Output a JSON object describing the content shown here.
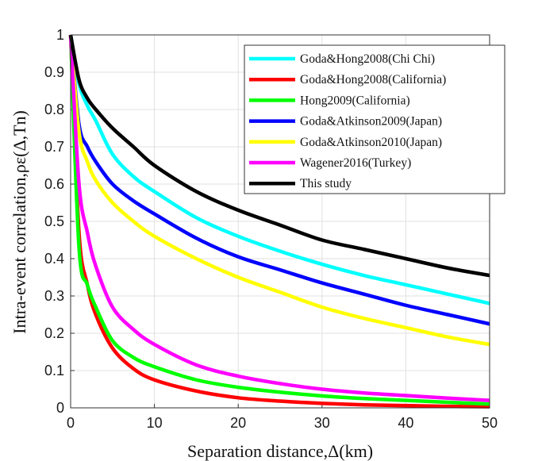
{
  "chart_data": {
    "type": "line",
    "xlabel": "Separation distance,Δ(km)",
    "ylabel": "Intra-event correlation,ρε(Δ,Tn)",
    "xlim": [
      0,
      50
    ],
    "ylim": [
      0,
      1
    ],
    "xticks": [
      "0",
      "10",
      "20",
      "30",
      "40",
      "50"
    ],
    "yticks": [
      "0",
      "0.1",
      "0.2",
      "0.3",
      "0.4",
      "0.5",
      "0.6",
      "0.7",
      "0.8",
      "0.9",
      "1"
    ],
    "grid": true,
    "legend_position": "top-right",
    "x": [
      0,
      1,
      2,
      3,
      5,
      7.5,
      10,
      15,
      20,
      25,
      30,
      35,
      40,
      45,
      50
    ],
    "series": [
      {
        "name": "Goda&Hong2008(Chi Chi)",
        "color": "#00ffff",
        "values": [
          1,
          0.87,
          0.81,
          0.77,
          0.68,
          0.62,
          0.58,
          0.51,
          0.46,
          0.42,
          0.385,
          0.355,
          0.33,
          0.305,
          0.28
        ]
      },
      {
        "name": "Goda&Hong2008(California)",
        "color": "#ff0000",
        "values": [
          1,
          0.47,
          0.33,
          0.25,
          0.16,
          0.105,
          0.075,
          0.045,
          0.027,
          0.018,
          0.012,
          0.008,
          0.006,
          0.004,
          0.003
        ]
      },
      {
        "name": "Hong2009(California)",
        "color": "#00ff00",
        "values": [
          1,
          0.43,
          0.33,
          0.27,
          0.18,
          0.135,
          0.11,
          0.075,
          0.055,
          0.042,
          0.032,
          0.025,
          0.02,
          0.015,
          0.01
        ]
      },
      {
        "name": "Goda&Atkinson2009(Japan)",
        "color": "#0000ff",
        "values": [
          1,
          0.76,
          0.7,
          0.66,
          0.6,
          0.555,
          0.52,
          0.455,
          0.405,
          0.37,
          0.335,
          0.305,
          0.275,
          0.25,
          0.225
        ]
      },
      {
        "name": "Goda&Atkinson2010(Japan)",
        "color": "#ffff00",
        "values": [
          1,
          0.74,
          0.66,
          0.61,
          0.55,
          0.5,
          0.46,
          0.4,
          0.35,
          0.31,
          0.27,
          0.24,
          0.215,
          0.19,
          0.17
        ]
      },
      {
        "name": "Wagener2016(Turkey)",
        "color": "#ff00ff",
        "values": [
          1,
          0.6,
          0.47,
          0.38,
          0.27,
          0.21,
          0.17,
          0.115,
          0.085,
          0.065,
          0.05,
          0.04,
          0.033,
          0.026,
          0.02
        ]
      },
      {
        "name": "This study",
        "color": "#000000",
        "values": [
          1,
          0.88,
          0.83,
          0.8,
          0.75,
          0.7,
          0.65,
          0.58,
          0.53,
          0.49,
          0.45,
          0.425,
          0.4,
          0.375,
          0.355
        ]
      }
    ]
  }
}
